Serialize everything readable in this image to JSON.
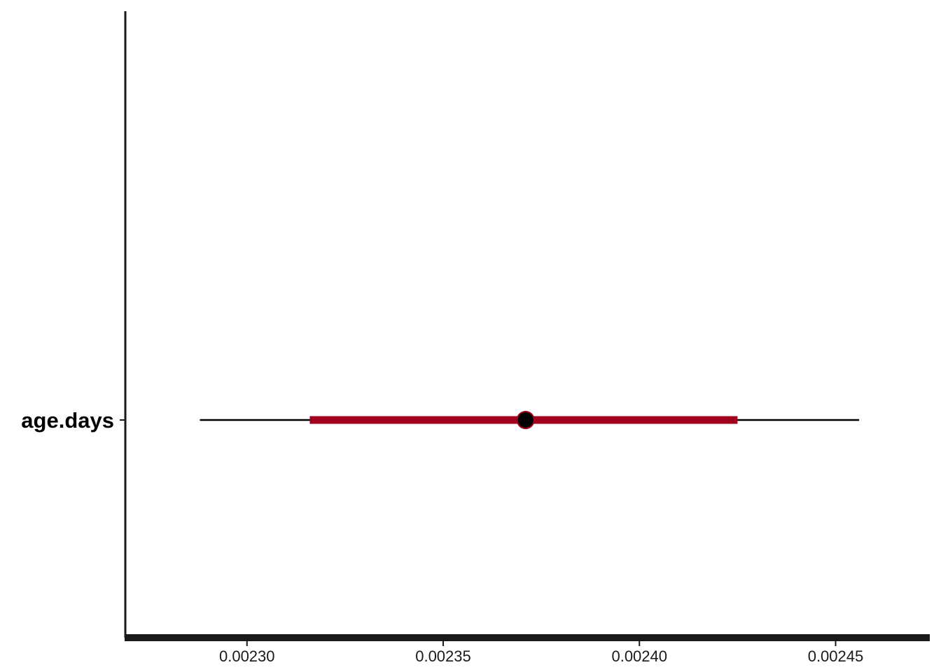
{
  "chart_data": {
    "type": "interval",
    "title": "",
    "xlabel": "",
    "ylabel": "",
    "xlim": [
      0.002269,
      0.002474
    ],
    "x_ticks": [
      "0.00230",
      "0.00235",
      "0.00240",
      "0.00245"
    ],
    "x_tick_values": [
      0.0023,
      0.00235,
      0.0024,
      0.00245
    ],
    "grid": false,
    "legend": "none",
    "categories": [
      "age.days"
    ],
    "intervals": [
      {
        "label": "age.days",
        "estimate": 0.002371,
        "inner_low": 0.002316,
        "inner_high": 0.002425,
        "outer_low": 0.002288,
        "outer_high": 0.002456
      }
    ],
    "colors": {
      "inner_interval": "#a0001e",
      "outer_interval": "#000000",
      "point_fill": "#000000",
      "point_stroke": "#a0001e",
      "axis": "#1a1a1a"
    }
  }
}
